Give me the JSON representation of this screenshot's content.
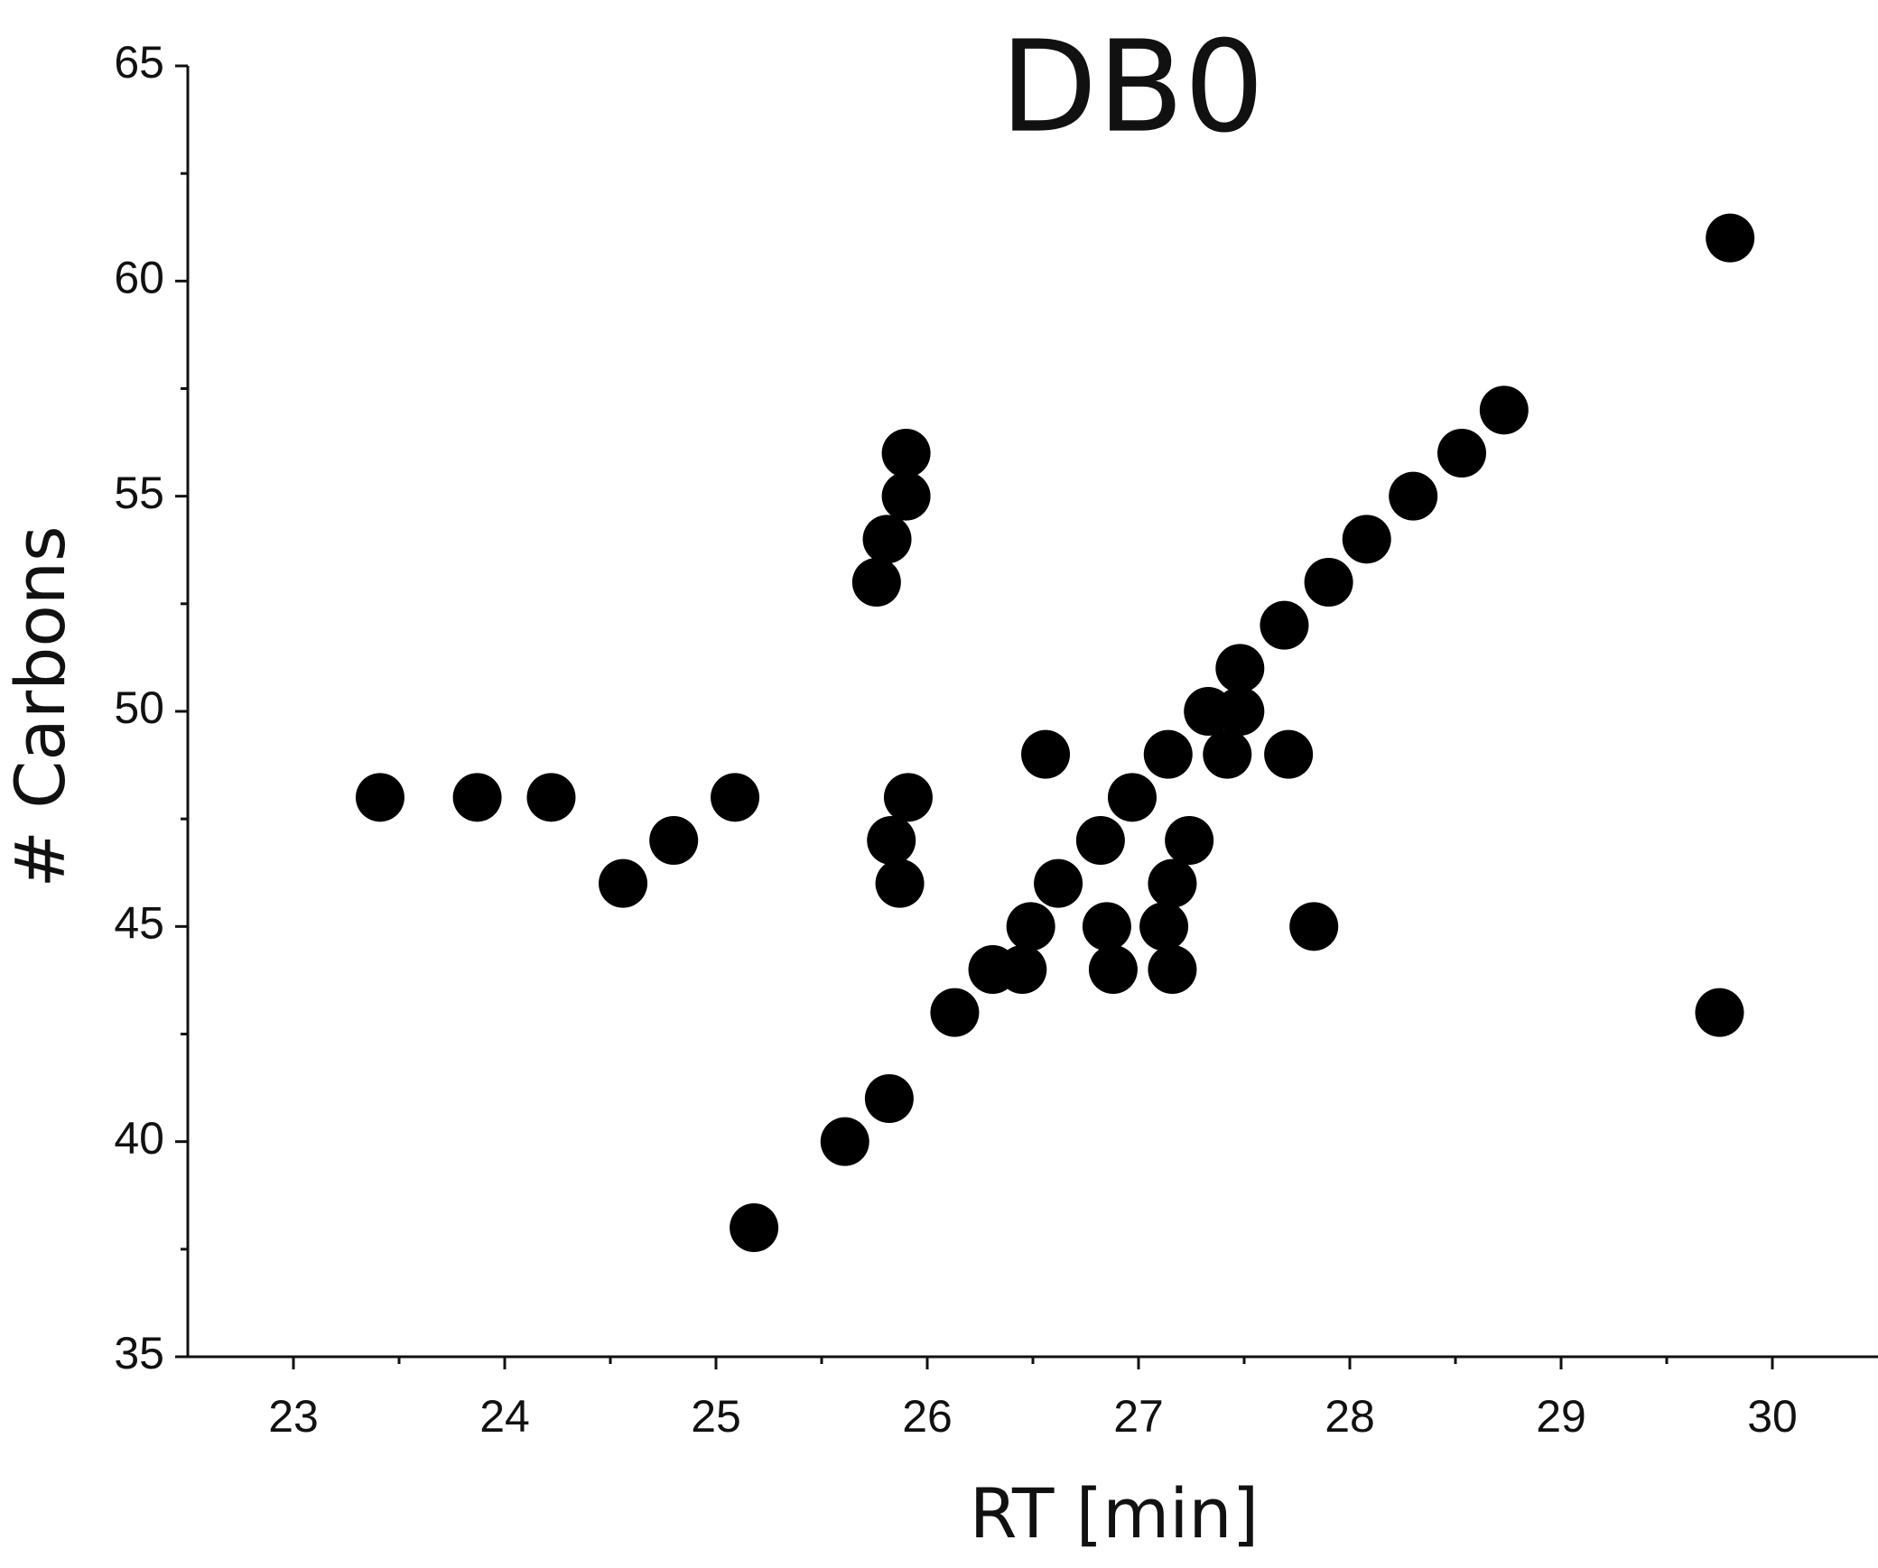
{
  "chart_data": {
    "type": "scatter",
    "title": "DB0",
    "x_label": "RT [min]",
    "y_label": "# Carbons",
    "xlim": [
      22.5,
      30.5
    ],
    "xticks": [
      23,
      24,
      25,
      26,
      27,
      28,
      29,
      30
    ],
    "ylim": [
      35,
      65
    ],
    "yticks": [
      35,
      40,
      45,
      50,
      55,
      60,
      65
    ],
    "color": "#000000",
    "x": [
      23.41,
      23.87,
      24.22,
      24.56,
      24.8,
      25.09,
      25.18,
      25.61,
      25.82,
      25.76,
      25.81,
      25.9,
      25.9,
      25.83,
      25.87,
      25.91,
      26.13,
      26.31,
      26.45,
      26.49,
      26.56,
      26.62,
      26.82,
      26.85,
      26.88,
      26.97,
      27.14,
      27.12,
      27.16,
      27.16,
      27.24,
      27.33,
      27.42,
      27.48,
      27.48,
      27.69,
      27.71,
      27.83,
      27.9,
      28.08,
      28.3,
      28.53,
      28.73,
      29.8,
      29.75
    ],
    "values": [
      48,
      48,
      48,
      46,
      47,
      48,
      38,
      40,
      41,
      53,
      54,
      55,
      56,
      47,
      46,
      48,
      43,
      44,
      44,
      45,
      49,
      46,
      47,
      45,
      44,
      48,
      49,
      45,
      46,
      44,
      47,
      50,
      49,
      50,
      51,
      52,
      49,
      45,
      53,
      54,
      55,
      56,
      57,
      61,
      43
    ]
  }
}
